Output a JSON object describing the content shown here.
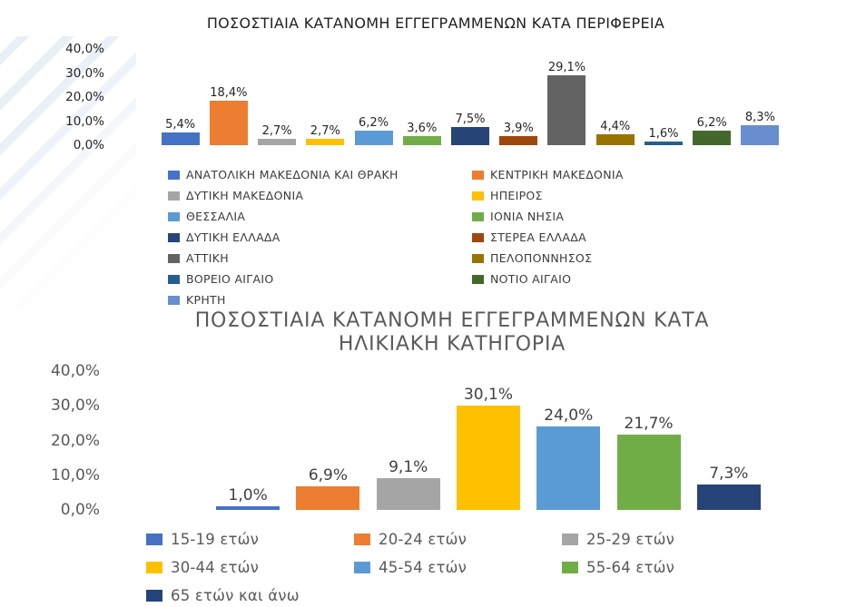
{
  "page": {
    "background": "#ffffff",
    "stripe_color": "#e9eff7"
  },
  "chart_data": [
    {
      "type": "bar",
      "title": "ΠΟΣΟΣΤΙΑΙΑ ΚΑΤΑΝΟΜΗ ΕΓΓΕΓΡΑΜΜΕΝΩΝ ΚΑΤΑ ΠΕΡΙΦΕΡΕΙΑ",
      "categories": [
        "ΑΝΑΤΟΛΙΚΗ ΜΑΚΕΔΟΝΙΑ ΚΑΙ ΘΡΑΚΗ",
        "ΚΕΝΤΡΙΚΗ ΜΑΚΕΔΟΝΙΑ",
        "ΔΥΤΙΚΗ ΜΑΚΕΔΟΝΙΑ",
        "ΗΠΕΙΡΟΣ",
        "ΘΕΣΣΑΛΙΑ",
        "ΙΟΝΙΑ ΝΗΣΙΑ",
        "ΔΥΤΙΚΗ ΕΛΛΑΔΑ",
        "ΣΤΕΡΕΑ ΕΛΛΑΔΑ",
        "ΑΤΤΙΚΗ",
        "ΠΕΛΟΠΟΝΝΗΣΟΣ",
        "ΒΟΡΕΙΟ ΑΙΓΑΙΟ",
        "ΝΟΤΙΟ ΑΙΓΑΙΟ",
        "ΚΡΗΤΗ"
      ],
      "values": [
        5.4,
        18.4,
        2.7,
        2.7,
        6.2,
        3.6,
        7.5,
        3.9,
        29.1,
        4.4,
        1.6,
        6.2,
        8.3
      ],
      "value_labels": [
        "5,4%",
        "18,4%",
        "2,7%",
        "2,7%",
        "6,2%",
        "3,6%",
        "7,5%",
        "3,9%",
        "29,1%",
        "4,4%",
        "1,6%",
        "6,2%",
        "8,3%"
      ],
      "colors": [
        "#4472C4",
        "#ED7D31",
        "#A5A5A5",
        "#FFC000",
        "#5B9BD5",
        "#70AD47",
        "#264478",
        "#9E480E",
        "#636363",
        "#997300",
        "#255E91",
        "#43682B",
        "#698ED0"
      ],
      "y_ticks": [
        "40,0%",
        "30,0%",
        "20,0%",
        "10,0%",
        "0,0%"
      ],
      "ylim": [
        0,
        40
      ],
      "xlabel": "",
      "ylabel": "",
      "grid": false,
      "legend_position": "bottom",
      "legend_columns": 2
    },
    {
      "type": "bar",
      "title": "ΠΟΣΟΣΤΙΑΙΑ ΚΑΤΑΝΟΜΗ ΕΓΓΕΓΡΑΜΜΕΝΩΝ ΚΑΤΑ ΗΛΙΚΙΑΚΗ ΚΑΤΗΓΟΡΙΑ",
      "categories": [
        "15-19 ετών",
        "20-24 ετών",
        "25-29 ετών",
        "30-44 ετών",
        "45-54 ετών",
        "55-64 ετών",
        "65 ετών και άνω"
      ],
      "values": [
        1.0,
        6.9,
        9.1,
        30.1,
        24.0,
        21.7,
        7.3
      ],
      "value_labels": [
        "1,0%",
        "6,9%",
        "9,1%",
        "30,1%",
        "24,0%",
        "21,7%",
        "7,3%"
      ],
      "colors": [
        "#4472C4",
        "#ED7D31",
        "#A5A5A5",
        "#FFC000",
        "#5B9BD5",
        "#70AD47",
        "#264478"
      ],
      "y_ticks": [
        "40,0%",
        "30,0%",
        "20,0%",
        "10,0%",
        "0,0%"
      ],
      "ylim": [
        0,
        40
      ],
      "xlabel": "",
      "ylabel": "",
      "grid": false,
      "legend_position": "bottom",
      "legend_columns": 3
    }
  ]
}
